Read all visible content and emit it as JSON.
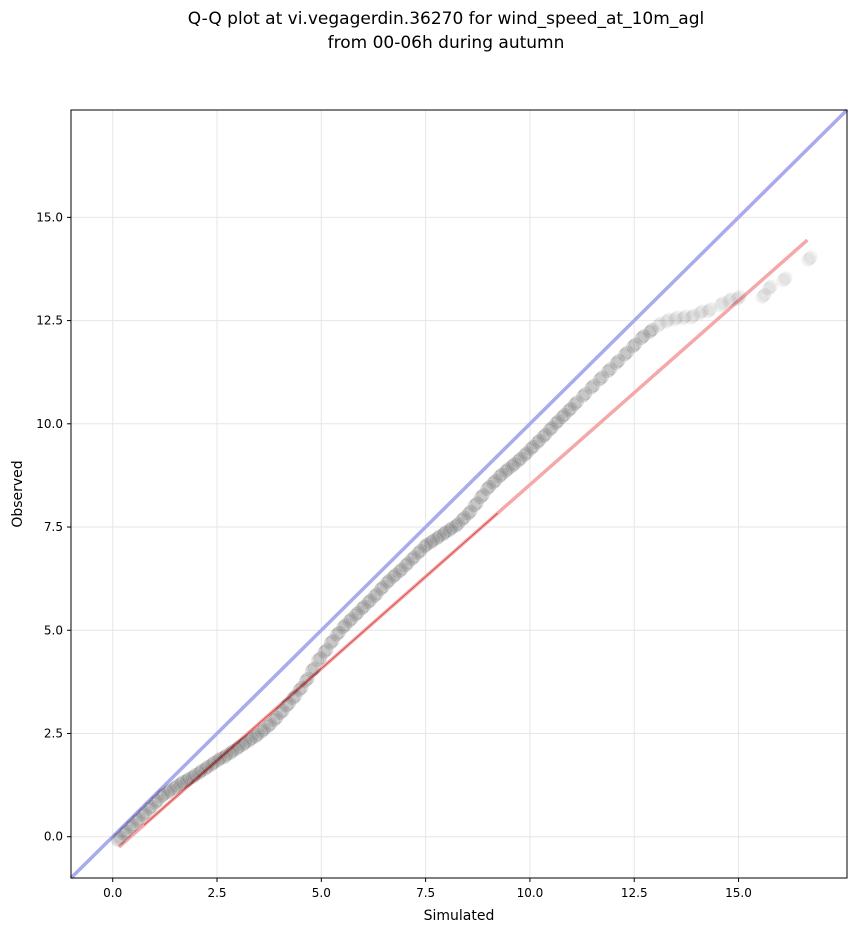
{
  "chart_data": {
    "type": "scatter",
    "title_line1": "Q-Q plot at vi.vegagerdin.36270 for wind_speed_at_10m_agl",
    "title_line2": "from 00-06h during autumn",
    "xlabel": "Simulated",
    "ylabel": "Observed",
    "xlim": [
      -1.0,
      17.6
    ],
    "ylim": [
      -1.0,
      17.6
    ],
    "xticks": [
      "0.0",
      "2.5",
      "5.0",
      "7.5",
      "10.0",
      "12.5",
      "15.0"
    ],
    "yticks": [
      "0.0",
      "2.5",
      "5.0",
      "7.5",
      "10.0",
      "12.5",
      "15.0"
    ],
    "grid": true,
    "reference_line": {
      "name": "1:1 line",
      "color": "#aaaaee",
      "points": [
        [
          -1.0,
          -1.0
        ],
        [
          17.6,
          17.6
        ]
      ]
    },
    "fit_line": {
      "color": "#f4a8a8",
      "inner_color": "#c00000",
      "points": [
        [
          0.15,
          -0.25
        ],
        [
          16.65,
          14.45
        ]
      ]
    },
    "marker_color": "#000000",
    "quantiles": {
      "simulated": [
        0.15,
        0.3,
        0.45,
        0.6,
        0.75,
        0.9,
        1.05,
        1.2,
        1.35,
        1.5,
        1.65,
        1.8,
        1.95,
        2.1,
        2.25,
        2.4,
        2.55,
        2.7,
        2.85,
        3.0,
        3.15,
        3.3,
        3.45,
        3.6,
        3.75,
        3.9,
        4.05,
        4.2,
        4.35,
        4.5,
        4.65,
        4.8,
        4.95,
        5.1,
        5.25,
        5.4,
        5.55,
        5.7,
        5.85,
        6.0,
        6.15,
        6.3,
        6.45,
        6.6,
        6.75,
        6.9,
        7.05,
        7.2,
        7.35,
        7.5,
        7.65,
        7.8,
        7.95,
        8.1,
        8.25,
        8.4,
        8.55,
        8.7,
        8.85,
        9.0,
        9.15,
        9.3,
        9.45,
        9.6,
        9.75,
        9.9,
        10.05,
        10.2,
        10.35,
        10.5,
        10.65,
        10.8,
        10.95,
        11.1,
        11.3,
        11.5,
        11.7,
        11.9,
        12.1,
        12.3,
        12.5,
        12.7,
        12.9,
        13.1,
        13.3,
        13.5,
        13.7,
        13.9,
        14.1,
        14.3,
        14.6,
        14.8,
        15.0,
        15.6,
        15.75,
        16.1,
        16.7
      ],
      "observed": [
        -0.05,
        0.1,
        0.25,
        0.4,
        0.55,
        0.7,
        0.85,
        1.0,
        1.1,
        1.2,
        1.3,
        1.38,
        1.47,
        1.57,
        1.67,
        1.77,
        1.87,
        1.95,
        2.05,
        2.15,
        2.25,
        2.35,
        2.45,
        2.57,
        2.7,
        2.85,
        3.02,
        3.2,
        3.38,
        3.58,
        3.8,
        4.05,
        4.3,
        4.5,
        4.72,
        4.92,
        5.1,
        5.25,
        5.4,
        5.55,
        5.7,
        5.85,
        6.02,
        6.18,
        6.32,
        6.45,
        6.6,
        6.75,
        6.9,
        7.05,
        7.15,
        7.25,
        7.35,
        7.45,
        7.55,
        7.7,
        7.85,
        8.05,
        8.25,
        8.45,
        8.6,
        8.75,
        8.88,
        9.0,
        9.13,
        9.27,
        9.42,
        9.57,
        9.72,
        9.88,
        10.04,
        10.19,
        10.34,
        10.5,
        10.7,
        10.9,
        11.1,
        11.3,
        11.5,
        11.7,
        11.9,
        12.1,
        12.25,
        12.4,
        12.5,
        12.55,
        12.58,
        12.6,
        12.7,
        12.75,
        12.9,
        13.0,
        13.05,
        13.1,
        13.3,
        13.5,
        14.0
      ]
    }
  }
}
